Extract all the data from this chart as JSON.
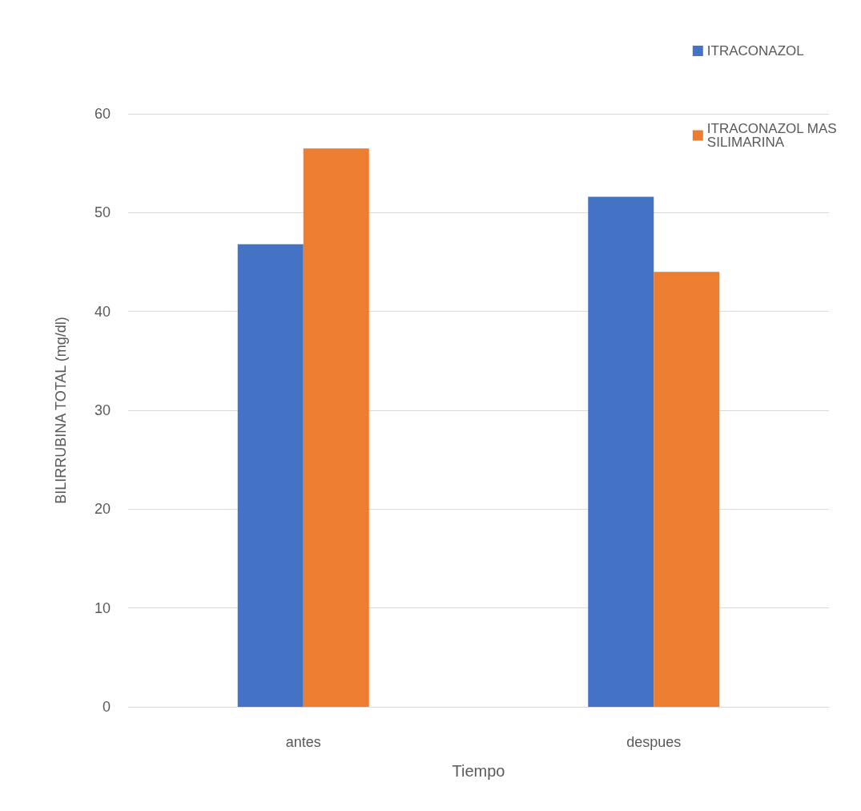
{
  "chart_data": {
    "type": "bar",
    "xlabel": "Tiempo",
    "ylabel": "BILIRRUBINA TOTAL (mg/dl)",
    "categories": [
      "antes",
      "despues"
    ],
    "series": [
      {
        "name": "ITRACONAZOL",
        "color": "#4472c4",
        "values": [
          46.8,
          51.6
        ]
      },
      {
        "name": "ITRACONAZOL MAS SILIMARINA",
        "color": "#ed7d31",
        "values": [
          56.5,
          44
        ]
      }
    ],
    "ylim": [
      0,
      60
    ],
    "yticks": [
      0,
      10,
      20,
      30,
      40,
      50,
      60
    ],
    "grid": "y",
    "legend": "top right"
  }
}
